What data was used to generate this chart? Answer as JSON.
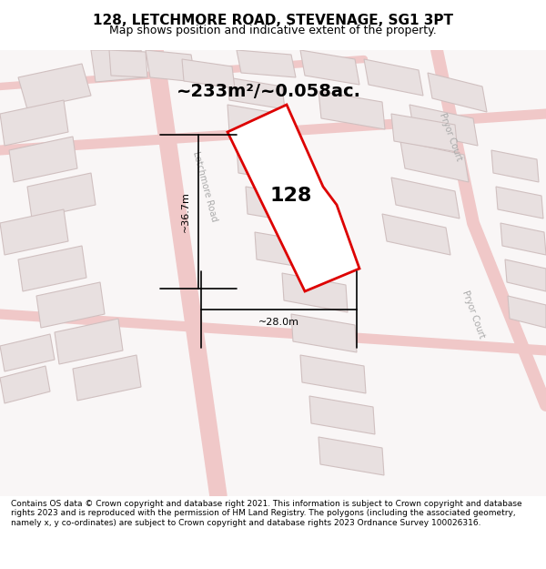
{
  "title": "128, LETCHMORE ROAD, STEVENAGE, SG1 3PT",
  "subtitle": "Map shows position and indicative extent of the property.",
  "footer": "Contains OS data © Crown copyright and database right 2021. This information is subject to Crown copyright and database rights 2023 and is reproduced with the permission of HM Land Registry. The polygons (including the associated geometry, namely x, y co-ordinates) are subject to Crown copyright and database rights 2023 Ordnance Survey 100026316.",
  "area_text": "~233m²/~0.058ac.",
  "label_128": "128",
  "dim_height": "~36.7m",
  "dim_width": "~28.0m",
  "bg_color": "#f5f0f0",
  "map_bg": "#f9f6f6",
  "road_color_light": "#f0c8c8",
  "building_fill": "#e8e0e0",
  "building_edge": "#d0c0c0",
  "plot_fill": "#ffffff",
  "plot_edge": "#dd0000",
  "plot_linewidth": 2.0,
  "title_fontsize": 11,
  "subtitle_fontsize": 9,
  "footer_fontsize": 6.5
}
